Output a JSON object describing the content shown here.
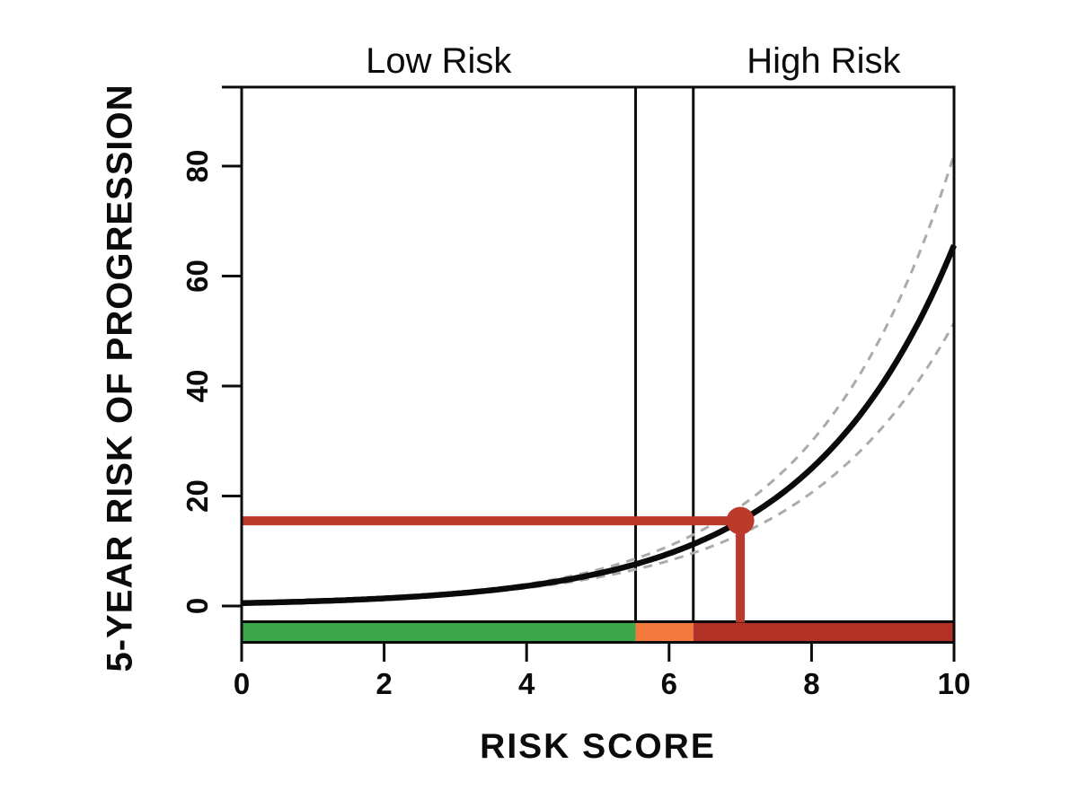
{
  "zone_labels": {
    "low": "Low Risk",
    "high": "High Risk"
  },
  "chart_data": {
    "type": "line",
    "title": "",
    "xlabel": "RISK SCORE",
    "ylabel": "5-YEAR RISK OF PROGRESSION",
    "x_range": [
      0,
      10
    ],
    "y_axis_range": [
      0,
      80
    ],
    "x_ticks": [
      0,
      2,
      4,
      6,
      8,
      10
    ],
    "y_ticks": [
      0,
      20,
      40,
      60,
      80
    ],
    "grid": false,
    "legend": "none",
    "thresholds": [
      5.53,
      6.34
    ],
    "risk_zones": [
      {
        "name": "low",
        "from": 0,
        "to": 5.53,
        "color": "#3DA64A"
      },
      {
        "name": "intermediate",
        "from": 5.53,
        "to": 6.34,
        "color": "#F4793E"
      },
      {
        "name": "high",
        "from": 6.34,
        "to": 10,
        "color": "#B23127"
      }
    ],
    "x": [
      0,
      0.5,
      1,
      1.5,
      2,
      2.5,
      3,
      3.5,
      4,
      4.5,
      5,
      5.5,
      6,
      6.5,
      7,
      7.5,
      8,
      8.5,
      9,
      9.5,
      10
    ],
    "series": [
      {
        "name": "estimated-risk",
        "style": "solid",
        "color": "#0A0A0A",
        "values": [
          0.53,
          0.67,
          0.86,
          1.09,
          1.39,
          1.77,
          2.25,
          2.86,
          3.64,
          4.63,
          5.89,
          7.5,
          9.54,
          12.14,
          15.45,
          19.66,
          25.02,
          31.84,
          40.51,
          51.55,
          65.6
        ]
      },
      {
        "name": "ci-upper",
        "style": "dashed",
        "color": "#ABABAB",
        "values": [
          0.53,
          0.68,
          0.88,
          1.13,
          1.45,
          1.87,
          2.4,
          3.09,
          3.98,
          5.12,
          6.59,
          8.48,
          10.92,
          14.05,
          18.08,
          23.26,
          29.93,
          38.52,
          49.56,
          63.77,
          82.06
        ]
      },
      {
        "name": "ci-lower",
        "style": "dashed",
        "color": "#ABABAB",
        "values": [
          0.53,
          0.67,
          0.84,
          1.05,
          1.32,
          1.66,
          2.09,
          2.63,
          3.3,
          4.15,
          5.22,
          6.56,
          8.25,
          10.37,
          13.04,
          16.39,
          20.61,
          25.91,
          32.57,
          40.94,
          51.47
        ]
      }
    ],
    "marker": {
      "x": 7.0,
      "value": 15.5,
      "color": "#BC3A2C"
    },
    "axis_color": "#0b0b0b"
  }
}
